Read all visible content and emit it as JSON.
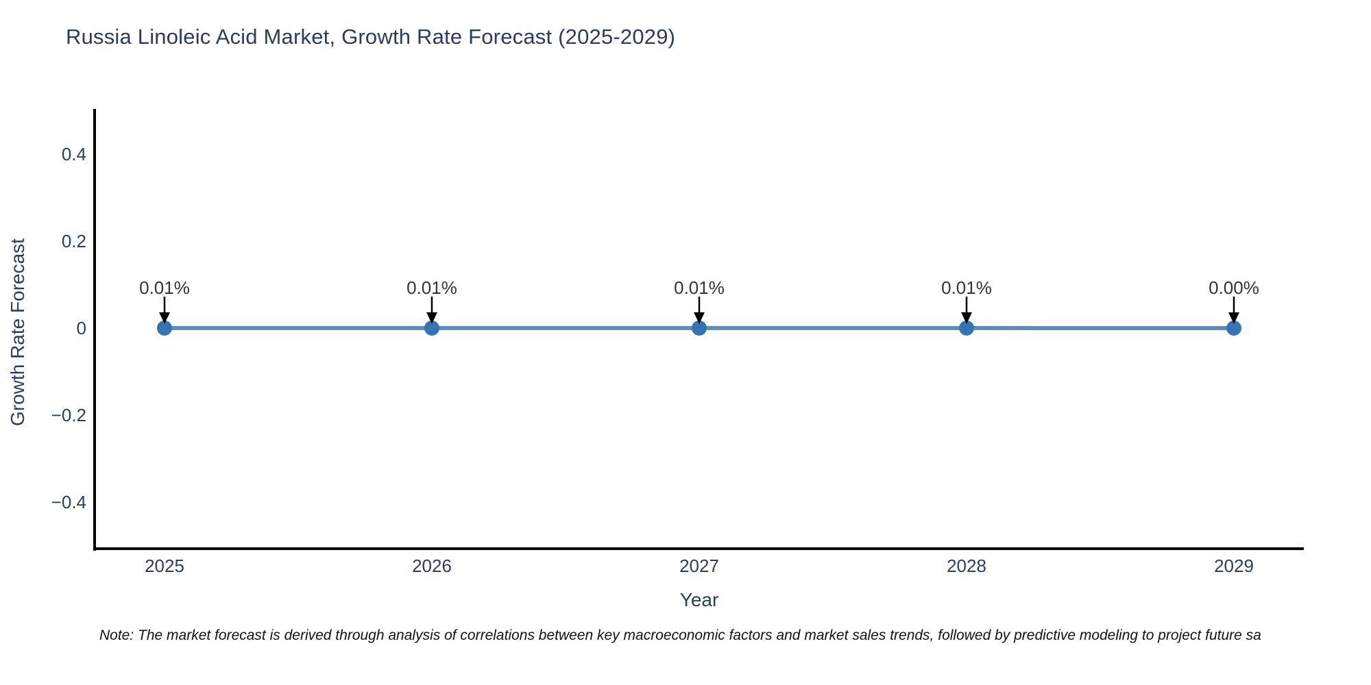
{
  "title": "Russia Linoleic Acid Market, Growth Rate Forecast (2025-2029)",
  "note": "Note: The market forecast is derived through analysis of correlations between key macroeconomic factors and market sales trends, followed by predictive modeling to project future sa",
  "chart_data": {
    "type": "line",
    "title": "Russia Linoleic Acid Market, Growth Rate Forecast (2025-2029)",
    "xlabel": "Year",
    "ylabel": "Growth Rate Forecast",
    "x": [
      2025,
      2026,
      2027,
      2028,
      2029
    ],
    "x_labels": [
      "2025",
      "2026",
      "2027",
      "2028",
      "2029"
    ],
    "values_pct": [
      0.01,
      0.01,
      0.01,
      0.01,
      0.0
    ],
    "point_labels": [
      "0.01%",
      "0.01%",
      "0.01%",
      "0.01%",
      "0.00%"
    ],
    "yticks": [
      0.4,
      0.2,
      0,
      -0.2,
      -0.4
    ],
    "ytick_labels": [
      "0.4",
      "0.2",
      "0",
      "−0.2",
      "−0.4"
    ],
    "ylim": [
      -0.5,
      0.5
    ],
    "grid": false,
    "legend": "none",
    "annotation_style": "down-arrow-to-point",
    "colors": {
      "line": "#5b8cbb",
      "marker": "#3474b4",
      "arrow": "#000000",
      "axis": "#000000",
      "text": "#2a3f5f",
      "annotation": "#333333"
    }
  }
}
